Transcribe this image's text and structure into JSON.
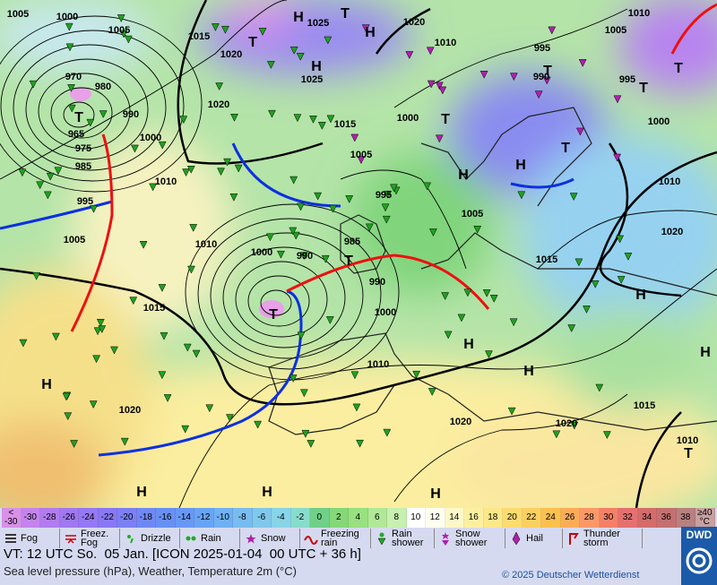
{
  "map": {
    "isobar_labels": [
      1005,
      1000,
      1005,
      1015,
      1025,
      1020,
      1010,
      995,
      1005,
      1010,
      990,
      995,
      1000,
      1020,
      1025,
      1020,
      1015,
      1000,
      1005,
      970,
      980,
      965,
      975,
      985,
      990,
      1000,
      1010,
      995,
      1005,
      1010,
      995,
      1005,
      1010,
      1020,
      1015,
      1000,
      990,
      985,
      990,
      1000,
      1015,
      1010,
      1020,
      1020,
      1020,
      1015,
      1010
    ],
    "centers": [
      "H",
      "T",
      "H",
      "T",
      "H",
      "T",
      "T",
      "T",
      "T",
      "H",
      "H",
      "T",
      "T",
      "T",
      "H",
      "H",
      "H",
      "H",
      "H",
      "H",
      "H",
      "H",
      "T",
      "T"
    ]
  },
  "temperature_scale": {
    "items": [
      {
        "label": "< -30",
        "color": "#d890e8"
      },
      {
        "label": "-30",
        "color": "#c484ec"
      },
      {
        "label": "-28",
        "color": "#b07cf0"
      },
      {
        "label": "-26",
        "color": "#a078f0"
      },
      {
        "label": "-24",
        "color": "#9478f4"
      },
      {
        "label": "-22",
        "color": "#8878f4"
      },
      {
        "label": "-20",
        "color": "#7c80f4"
      },
      {
        "label": "-18",
        "color": "#7088f4"
      },
      {
        "label": "-16",
        "color": "#6890f4"
      },
      {
        "label": "-14",
        "color": "#6898f4"
      },
      {
        "label": "-12",
        "color": "#68a4f4"
      },
      {
        "label": "-10",
        "color": "#70b0f4"
      },
      {
        "label": "-8",
        "color": "#78bcf0"
      },
      {
        "label": "-6",
        "color": "#80c8ec"
      },
      {
        "label": "-4",
        "color": "#88d4e8"
      },
      {
        "label": "-2",
        "color": "#88dccc"
      },
      {
        "label": "0",
        "color": "#70d088"
      },
      {
        "label": "2",
        "color": "#84d878"
      },
      {
        "label": "4",
        "color": "#98e080"
      },
      {
        "label": "6",
        "color": "#b0e898"
      },
      {
        "label": "8",
        "color": "#c8f0b0"
      },
      {
        "label": "10",
        "color": "#ffffff"
      },
      {
        "label": "12",
        "color": "#fffff0"
      },
      {
        "label": "14",
        "color": "#fcf8c8"
      },
      {
        "label": "16",
        "color": "#fcf0a0"
      },
      {
        "label": "18",
        "color": "#fce888"
      },
      {
        "label": "20",
        "color": "#fcdc70"
      },
      {
        "label": "22",
        "color": "#fcd060"
      },
      {
        "label": "24",
        "color": "#fcc050"
      },
      {
        "label": "26",
        "color": "#fcac58"
      },
      {
        "label": "28",
        "color": "#fc9868"
      },
      {
        "label": "30",
        "color": "#f48068"
      },
      {
        "label": "32",
        "color": "#e47070"
      },
      {
        "label": "34",
        "color": "#d46c6c"
      },
      {
        "label": "36",
        "color": "#c47070"
      },
      {
        "label": "38",
        "color": "#b88080"
      },
      {
        "label": "≥40 °C",
        "color": "#c8a0a0"
      }
    ]
  },
  "legend": [
    "Fog",
    "Freez. Fog",
    "Drizzle",
    "Rain",
    "Snow",
    "Freezing rain",
    "Rain shower",
    "Snow shower",
    "Hail",
    "Thunder storm"
  ],
  "footer": {
    "valid_time": "VT: 12 UTC So.  05 Jan. [ICON 2025-01-04  00 UTC + 36 h]",
    "description": "Sea level pressure (hPa), Weather, Temperature 2m (°C)",
    "copyright": "© 2025 Deutscher Wetterdienst",
    "logo": "DWD"
  }
}
